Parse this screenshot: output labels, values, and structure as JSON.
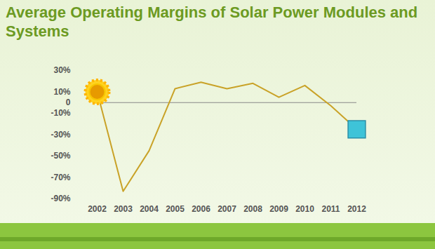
{
  "chart_data": {
    "type": "line",
    "title": "Average Operating Margins of Solar Power Modules and Systems",
    "categories": [
      "2002",
      "2003",
      "2004",
      "2005",
      "2006",
      "2007",
      "2008",
      "2009",
      "2010",
      "2011",
      "2012"
    ],
    "values": [
      10,
      -83,
      -45,
      13,
      19,
      13,
      18,
      5,
      16,
      -3,
      -25
    ],
    "color": "#c9a227",
    "ylim": [
      -90,
      30
    ],
    "yticks": [
      {
        "value": 30,
        "label": "30%"
      },
      {
        "value": 10,
        "label": "10%"
      },
      0,
      {
        "value": -10,
        "label": "-10%"
      },
      {
        "value": -30,
        "label": "-30%"
      },
      {
        "value": -50,
        "label": "-50%"
      },
      {
        "value": -70,
        "label": "-70%"
      },
      {
        "value": -90,
        "label": "-90%"
      }
    ]
  }
}
